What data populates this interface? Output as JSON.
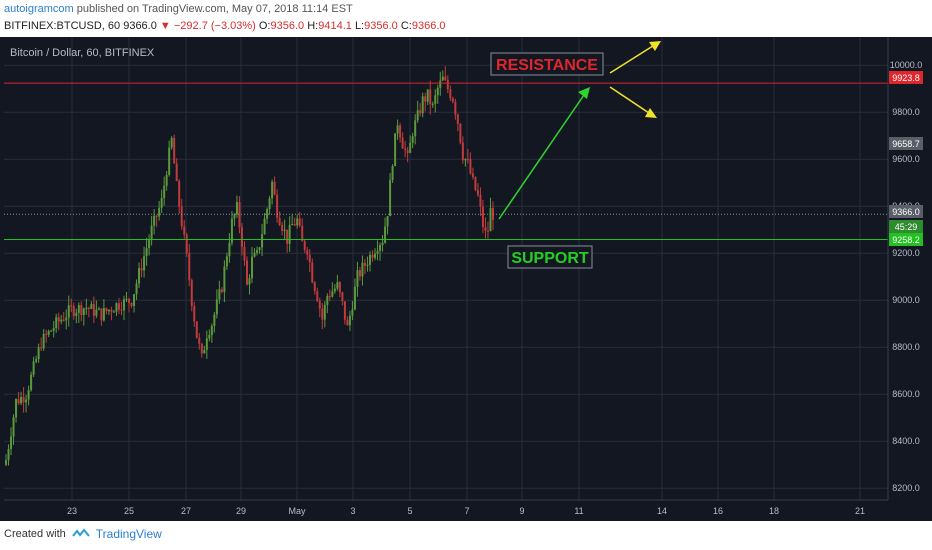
{
  "header": {
    "author": "autoigramcom",
    "published_text": "published on TradingView.com, May 07, 2018 11:14 EST",
    "symbol_line": "BITFINEX:BTCUSD, 60",
    "last": "9366.0",
    "change": "▼ −292.7 (−3.03%)",
    "o_label": "O:",
    "o": "9356.0",
    "h_label": "H:",
    "h": "9414.1",
    "l_label": "L:",
    "l": "9356.0",
    "c_label": "C:",
    "c": "9366.0"
  },
  "footer": {
    "created_with": "Created with",
    "brand": "TradingView"
  },
  "colors": {
    "background": "#131722",
    "grid": "#2a2e39",
    "up": "#5b9a3c",
    "down": "#c23b3b",
    "resistance": "#e0262d",
    "support": "#22c022",
    "arrow_up": "#2fd42f",
    "arrow_yellow": "#f2e12b"
  },
  "chart_data": {
    "type": "candlestick",
    "title": "Bitcoin / Dollar, 60, BITFINEX",
    "ylim": [
      8150,
      10120
    ],
    "y_ticks": [
      "8200.0",
      "8400.0",
      "8600.0",
      "8800.0",
      "9000.0",
      "9200.0",
      "9400.0",
      "9600.0",
      "9800.0",
      "10000.0"
    ],
    "x_ticks": [
      "23",
      "25",
      "27",
      "29",
      "May",
      "3",
      "5",
      "7",
      "9",
      "11",
      "14",
      "16",
      "18",
      "21"
    ],
    "resistance": {
      "label": "RESISTANCE",
      "value": 9923.8,
      "tag": "9923.8"
    },
    "support": {
      "label": "SUPPORT",
      "value": 9258.2,
      "tag": "9258.2"
    },
    "last_price": {
      "value": 9366.0,
      "tag": "9366.0"
    },
    "countdown_tag": "45:29",
    "extra_tag": "9658.7",
    "close_path": [
      [
        0,
        8320
      ],
      [
        4,
        8570
      ],
      [
        8,
        8600
      ],
      [
        14,
        8820
      ],
      [
        20,
        8900
      ],
      [
        26,
        8960
      ],
      [
        32,
        8970
      ],
      [
        38,
        8940
      ],
      [
        44,
        8980
      ],
      [
        50,
        9000
      ],
      [
        54,
        9150
      ],
      [
        58,
        9300
      ],
      [
        62,
        9420
      ],
      [
        64,
        9560
      ],
      [
        66,
        9680
      ],
      [
        68,
        9480
      ],
      [
        70,
        9330
      ],
      [
        72,
        9180
      ],
      [
        74,
        9000
      ],
      [
        76,
        8850
      ],
      [
        78,
        8750
      ],
      [
        80,
        8860
      ],
      [
        82,
        8900
      ],
      [
        86,
        9060
      ],
      [
        88,
        9200
      ],
      [
        90,
        9330
      ],
      [
        92,
        9390
      ],
      [
        94,
        9250
      ],
      [
        96,
        9060
      ],
      [
        98,
        9170
      ],
      [
        100,
        9190
      ],
      [
        104,
        9390
      ],
      [
        106,
        9500
      ],
      [
        108,
        9380
      ],
      [
        110,
        9320
      ],
      [
        112,
        9260
      ],
      [
        114,
        9320
      ],
      [
        116,
        9340
      ],
      [
        118,
        9240
      ],
      [
        120,
        9220
      ],
      [
        122,
        9100
      ],
      [
        124,
        9020
      ],
      [
        126,
        8920
      ],
      [
        128,
        9020
      ],
      [
        132,
        9060
      ],
      [
        134,
        8980
      ],
      [
        136,
        8880
      ],
      [
        138,
        8990
      ],
      [
        140,
        9100
      ],
      [
        144,
        9170
      ],
      [
        148,
        9240
      ],
      [
        150,
        9260
      ],
      [
        152,
        9380
      ],
      [
        154,
        9600
      ],
      [
        156,
        9760
      ],
      [
        158,
        9670
      ],
      [
        160,
        9600
      ],
      [
        162,
        9720
      ],
      [
        164,
        9780
      ],
      [
        166,
        9850
      ],
      [
        168,
        9870
      ],
      [
        170,
        9820
      ],
      [
        172,
        9900
      ],
      [
        174,
        9940
      ],
      [
        176,
        9900
      ],
      [
        178,
        9860
      ],
      [
        180,
        9760
      ],
      [
        182,
        9620
      ],
      [
        184,
        9580
      ],
      [
        186,
        9500
      ],
      [
        188,
        9440
      ],
      [
        190,
        9320
      ],
      [
        191,
        9280
      ],
      [
        192,
        9300
      ],
      [
        193,
        9380
      ],
      [
        194,
        9366
      ]
    ]
  }
}
